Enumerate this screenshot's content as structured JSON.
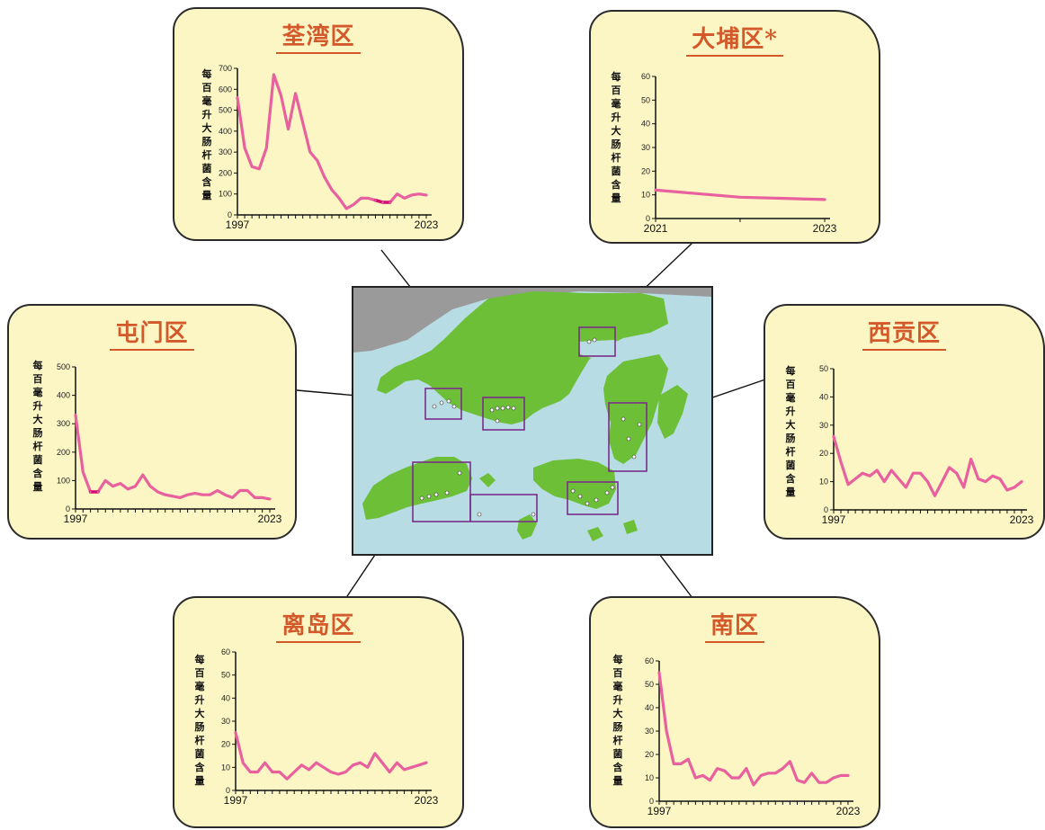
{
  "colors": {
    "line": "#e8609e",
    "highlight": "#d10f72",
    "title": "#d4592a",
    "panel": "#fbf6c4",
    "sea": "#b7dce3",
    "land": "#6cbf37",
    "mainland": "#9a9a9a"
  },
  "ylabel_text": "每百毫升大肠杆菌含量",
  "chart_data": [
    {
      "type": "line",
      "title": "荃湾区",
      "ylabel": "每百毫升大肠杆菌含量",
      "ylim": [
        0,
        700
      ],
      "yticks": [
        0,
        100,
        200,
        300,
        400,
        500,
        600,
        700
      ],
      "xlabels": [
        "1997",
        "2023"
      ],
      "x": [
        1997,
        1998,
        1999,
        2000,
        2001,
        2002,
        2003,
        2004,
        2005,
        2006,
        2007,
        2008,
        2009,
        2010,
        2011,
        2012,
        2013,
        2014,
        2015,
        2016,
        2017,
        2018,
        2019,
        2020,
        2021,
        2022,
        2023
      ],
      "values": [
        560,
        320,
        230,
        220,
        320,
        670,
        570,
        410,
        580,
        440,
        300,
        260,
        180,
        120,
        80,
        30,
        50,
        80,
        80,
        70,
        60,
        60,
        100,
        80,
        95,
        100,
        95
      ],
      "highlight_range": [
        2016,
        2018
      ]
    },
    {
      "type": "line",
      "title": "大埔区*",
      "ylabel": "每百毫升大肠杆菌含量",
      "ylim": [
        0,
        60
      ],
      "yticks": [
        0,
        10,
        20,
        30,
        40,
        50,
        60
      ],
      "xlabels": [
        "2021",
        "2023"
      ],
      "x": [
        2021,
        2022,
        2023
      ],
      "values": [
        12,
        9,
        8
      ]
    },
    {
      "type": "line",
      "title": "屯门区",
      "ylabel": "每百毫升大肠杆菌含量",
      "ylim": [
        0,
        500
      ],
      "yticks": [
        0,
        100,
        200,
        300,
        400,
        500
      ],
      "xlabels": [
        "1997",
        "2023"
      ],
      "x": [
        1997,
        1998,
        1999,
        2000,
        2001,
        2002,
        2003,
        2004,
        2005,
        2006,
        2007,
        2008,
        2009,
        2010,
        2011,
        2012,
        2013,
        2014,
        2015,
        2016,
        2017,
        2018,
        2019,
        2020,
        2021,
        2022,
        2023
      ],
      "values": [
        330,
        130,
        60,
        60,
        100,
        80,
        90,
        70,
        80,
        120,
        80,
        60,
        50,
        45,
        40,
        50,
        55,
        50,
        50,
        65,
        50,
        40,
        65,
        65,
        40,
        40,
        35
      ],
      "highlight_range": [
        1999,
        2000
      ]
    },
    {
      "type": "line",
      "title": "西贡区",
      "ylabel": "每百毫升大肠杆菌含量",
      "ylim": [
        0,
        50
      ],
      "yticks": [
        0,
        10,
        20,
        30,
        40,
        50
      ],
      "xlabels": [
        "1997",
        "2023"
      ],
      "x": [
        1997,
        1998,
        1999,
        2000,
        2001,
        2002,
        2003,
        2004,
        2005,
        2006,
        2007,
        2008,
        2009,
        2010,
        2011,
        2012,
        2013,
        2014,
        2015,
        2016,
        2017,
        2018,
        2019,
        2020,
        2021,
        2022,
        2023
      ],
      "values": [
        26,
        17,
        9,
        11,
        13,
        12,
        14,
        10,
        14,
        11,
        8,
        13,
        13,
        10,
        5,
        10,
        15,
        13,
        8,
        18,
        11,
        10,
        12,
        11,
        7,
        8,
        10
      ]
    },
    {
      "type": "line",
      "title": "离岛区",
      "ylabel": "每百毫升大肠杆菌含量",
      "ylim": [
        0,
        60
      ],
      "yticks": [
        0,
        10,
        20,
        30,
        40,
        50,
        60
      ],
      "xlabels": [
        "1997",
        "2023"
      ],
      "x": [
        1997,
        1998,
        1999,
        2000,
        2001,
        2002,
        2003,
        2004,
        2005,
        2006,
        2007,
        2008,
        2009,
        2010,
        2011,
        2012,
        2013,
        2014,
        2015,
        2016,
        2017,
        2018,
        2019,
        2020,
        2021,
        2022,
        2023
      ],
      "values": [
        25,
        12,
        8,
        8,
        12,
        8,
        8,
        5,
        8,
        11,
        9,
        12,
        10,
        8,
        7,
        8,
        11,
        12,
        10,
        16,
        12,
        8,
        12,
        9,
        10,
        11,
        12
      ]
    },
    {
      "type": "line",
      "title": "南区",
      "ylabel": "每百毫升大肠杆菌含量",
      "ylim": [
        0,
        60
      ],
      "yticks": [
        0,
        10,
        20,
        30,
        40,
        50,
        60
      ],
      "xlabels": [
        "1997",
        "2023"
      ],
      "x": [
        1997,
        1998,
        1999,
        2000,
        2001,
        2002,
        2003,
        2004,
        2005,
        2006,
        2007,
        2008,
        2009,
        2010,
        2011,
        2012,
        2013,
        2014,
        2015,
        2016,
        2017,
        2018,
        2019,
        2020,
        2021,
        2022,
        2023
      ],
      "values": [
        55,
        30,
        16,
        16,
        18,
        10,
        11,
        9,
        14,
        13,
        10,
        10,
        14,
        7,
        11,
        12,
        12,
        14,
        17,
        9,
        8,
        12,
        8,
        8,
        10,
        11,
        11
      ]
    }
  ]
}
